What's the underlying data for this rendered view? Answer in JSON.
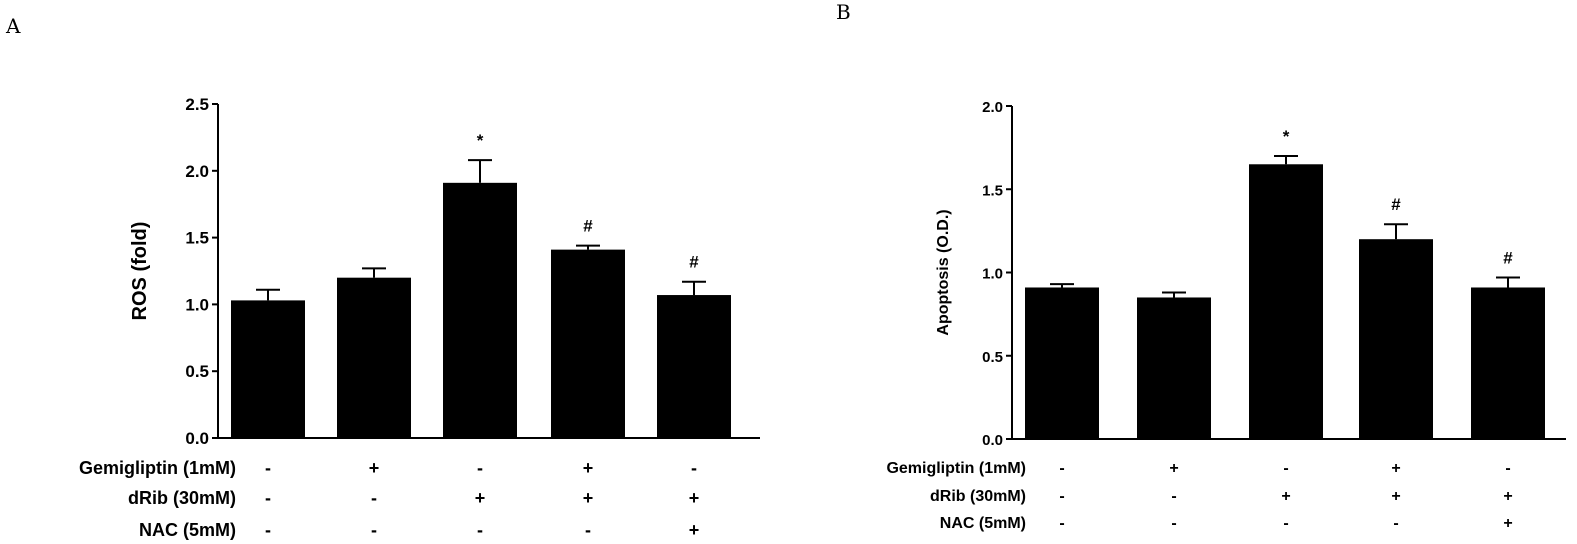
{
  "panels": [
    {
      "letter": "A",
      "ylabel": "ROS (fold)",
      "treatments": [
        {
          "label": "Gemigliptin (1mM)",
          "signs": [
            "-",
            "+",
            "-",
            "+",
            "-"
          ]
        },
        {
          "label": "dRib (30mM)",
          "signs": [
            "-",
            "-",
            "+",
            "+",
            "+"
          ]
        },
        {
          "label": "NAC (5mM)",
          "signs": [
            "-",
            "-",
            "-",
            "-",
            "+"
          ]
        }
      ]
    },
    {
      "letter": "B",
      "ylabel": "Apoptosis (O.D.)",
      "treatments": [
        {
          "label": "Gemigliptin (1mM)",
          "signs": [
            "-",
            "+",
            "-",
            "+",
            "-"
          ]
        },
        {
          "label": "dRib (30mM)",
          "signs": [
            "-",
            "-",
            "+",
            "+",
            "+"
          ]
        },
        {
          "label": "NAC (5mM)",
          "signs": [
            "-",
            "-",
            "-",
            "-",
            "+"
          ]
        }
      ]
    }
  ],
  "chart_data": [
    {
      "type": "bar",
      "title": "",
      "ylabel": "ROS (fold)",
      "ylim": [
        0,
        2.5
      ],
      "yticks": [
        "0.0",
        "0.5",
        "1.0",
        "1.5",
        "2.0",
        "2.5"
      ],
      "values": [
        1.03,
        1.2,
        1.91,
        1.41,
        1.07
      ],
      "errors": [
        0.08,
        0.07,
        0.17,
        0.03,
        0.1
      ],
      "annotations": [
        "",
        "",
        "*",
        "#",
        "#"
      ],
      "bar_color": "#000000"
    },
    {
      "type": "bar",
      "title": "",
      "ylabel": "Apoptosis (O.D.)",
      "ylim": [
        0,
        2.0
      ],
      "yticks": [
        "0.0",
        "0.5",
        "1.0",
        "1.5",
        "2.0"
      ],
      "values": [
        0.91,
        0.85,
        1.65,
        1.2,
        0.91
      ],
      "errors": [
        0.02,
        0.03,
        0.05,
        0.09,
        0.06
      ],
      "annotations": [
        "",
        "",
        "*",
        "#",
        "#"
      ],
      "bar_color": "#000000"
    }
  ]
}
